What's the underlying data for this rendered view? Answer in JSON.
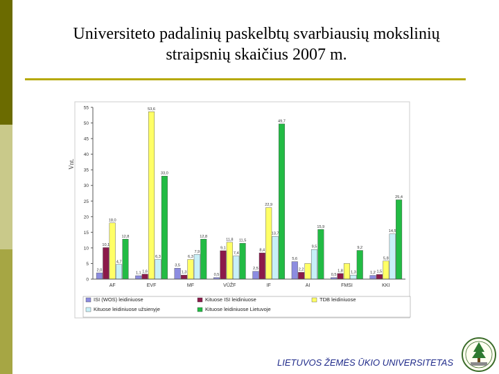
{
  "slide": {
    "title_line1": "Universiteto padalinių paskelbtų svarbiausių mokslinių",
    "title_line2": "straipsnių skaičius 2007 m.",
    "footer": "LIETUVOS ŽEMĖS ŪKIO UNIVERSITETAS"
  },
  "chart_data": {
    "type": "bar",
    "ylabel": "Vnt.",
    "ylim": [
      0,
      55
    ],
    "yticks": [
      0,
      5,
      10,
      15,
      20,
      25,
      30,
      35,
      40,
      45,
      50,
      55
    ],
    "categories": [
      "AF",
      "EVF",
      "MF",
      "VŪŽF",
      "IF",
      "AI",
      "FMSI",
      "KKI"
    ],
    "series": [
      {
        "name": "ISI (WOS) leidiniuose",
        "color": "#8c8ce0",
        "values": [
          2.0,
          1.1,
          3.5,
          0.5,
          2.5,
          5.6,
          0.5,
          1.2
        ],
        "labels": [
          "2,0",
          "1,1",
          "3,5",
          "0,5",
          "2,5",
          "5,6",
          "0,5",
          "1,2"
        ]
      },
      {
        "name": "Kituose ISI leidiniuose",
        "color": "#8b1a4a",
        "values": [
          10.1,
          1.6,
          1.3,
          9.1,
          8.4,
          2.2,
          1.8,
          1.5
        ],
        "labels": [
          "10,1",
          "1,6",
          "1,3",
          "9,1",
          "8,4",
          "2,2",
          "1,8",
          "1,5"
        ]
      },
      {
        "name": "TDB leidiniuose",
        "color": "#ffff66",
        "values": [
          18.0,
          53.6,
          6.3,
          11.8,
          22.9,
          5.0,
          5.0,
          5.8
        ],
        "labels": [
          "18,0",
          "53,6",
          "6,3",
          "11,8",
          "22,9",
          "",
          "",
          "5,8"
        ]
      },
      {
        "name": "Kituose leidiniuose užsienyje",
        "color": "#c8f0f8",
        "values": [
          4.7,
          6.3,
          7.9,
          7.4,
          13.7,
          9.5,
          1.3,
          14.5
        ],
        "labels": [
          "4,7",
          "6,3",
          "7,9",
          "7,4",
          "13,7",
          "9,5",
          "1,3",
          "14,5"
        ]
      },
      {
        "name": "Kituose leidiniuose Lietuvoje",
        "color": "#22bb44",
        "values": [
          12.8,
          33.0,
          12.8,
          11.5,
          49.7,
          15.9,
          9.2,
          25.4
        ],
        "labels": [
          "12,8",
          "33,0",
          "12,8",
          "11,5",
          "49,7",
          "15,9",
          "9,2",
          "25,4"
        ]
      }
    ],
    "grid": false,
    "legend": "bottom"
  }
}
